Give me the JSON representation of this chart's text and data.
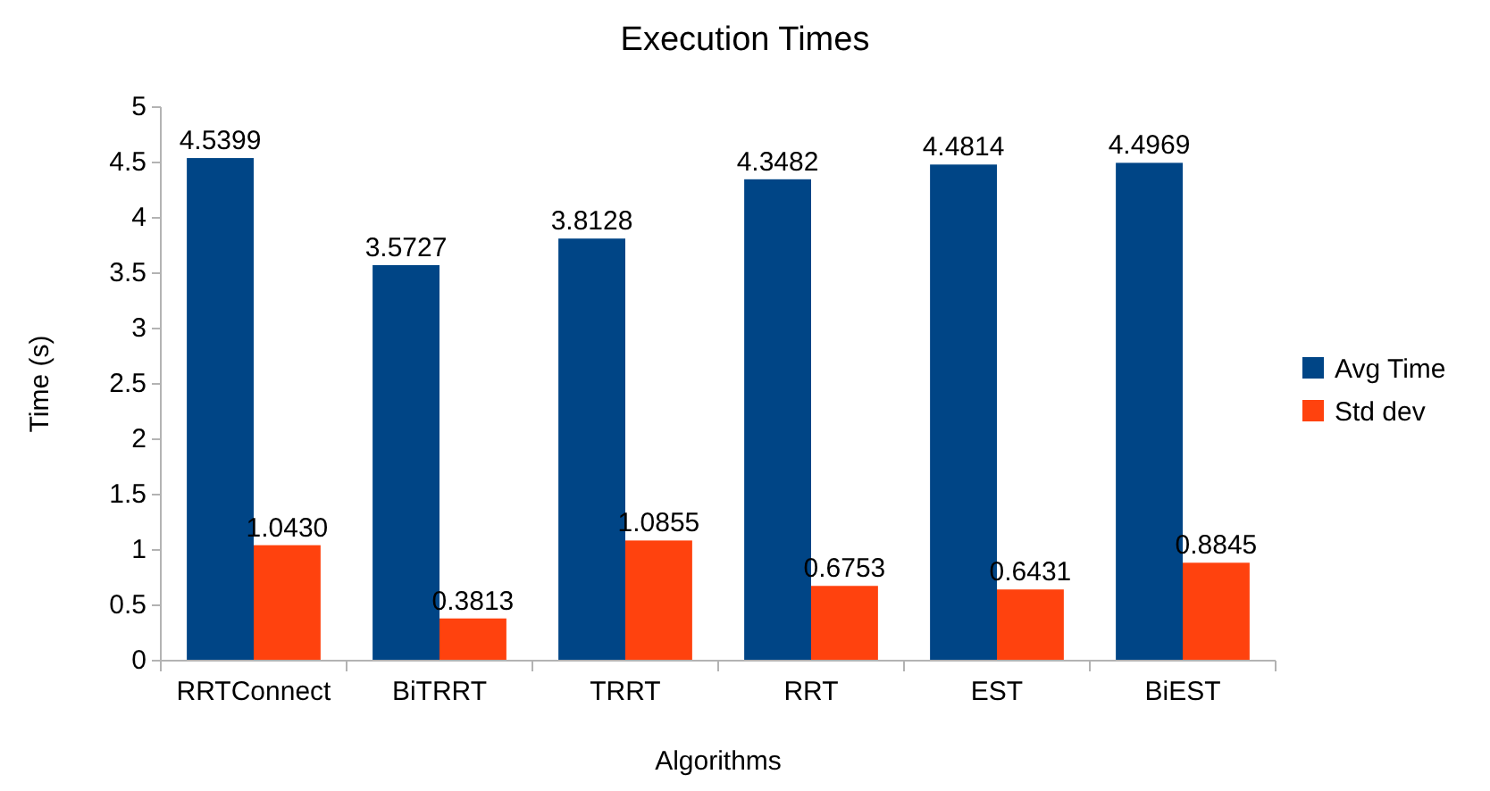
{
  "chart_data": {
    "type": "bar",
    "title": "Execution Times",
    "xlabel": "Algorithms",
    "ylabel": "Time (s)",
    "categories": [
      "RRTConnect",
      "BiTRRT",
      "TRRT",
      "RRT",
      "EST",
      "BiEST"
    ],
    "series": [
      {
        "name": "Avg Time",
        "color": "#004586",
        "values": [
          4.5399,
          3.5727,
          3.8128,
          4.3482,
          4.4814,
          4.4969
        ],
        "value_labels": [
          "4.5399",
          "3.5727",
          "3.8128",
          "4.3482",
          "4.4814",
          "4.4969"
        ]
      },
      {
        "name": "Std dev",
        "color": "#ff420e",
        "values": [
          1.043,
          0.3813,
          1.0855,
          0.6753,
          0.6431,
          0.8845
        ],
        "value_labels": [
          "1.0430",
          "0.3813",
          "1.0855",
          "0.6753",
          "0.6431",
          "0.8845"
        ]
      }
    ],
    "ylim": [
      0,
      5
    ],
    "yticks": [
      0,
      0.5,
      1,
      1.5,
      2,
      2.5,
      3,
      3.5,
      4,
      4.5,
      5
    ],
    "grid": false,
    "legend": "right"
  }
}
